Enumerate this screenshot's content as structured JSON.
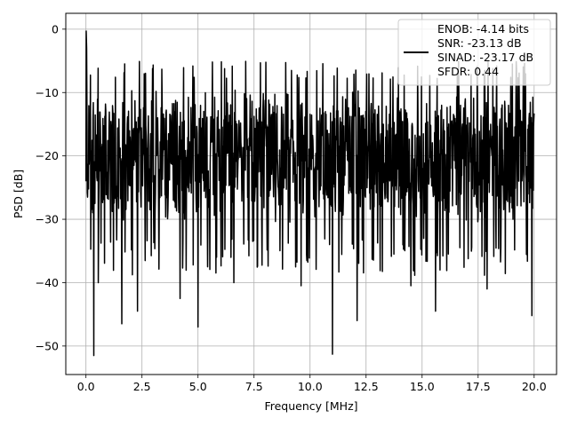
{
  "chart_data": {
    "type": "line",
    "title": "",
    "xlabel": "Frequency [MHz]",
    "ylabel": "PSD [dB]",
    "xlim": [
      -0.9,
      21.0
    ],
    "ylim": [
      -54.5,
      2.5
    ],
    "xticks": [
      0.0,
      2.5,
      5.0,
      7.5,
      10.0,
      12.5,
      15.0,
      17.5,
      20.0
    ],
    "xtick_labels": [
      "0.0",
      "2.5",
      "5.0",
      "7.5",
      "10.0",
      "12.5",
      "15.0",
      "17.5",
      "20.0"
    ],
    "yticks": [
      0,
      -10,
      -20,
      -30,
      -40,
      -50
    ],
    "ytick_labels": [
      "0",
      "−10",
      "−20",
      "−30",
      "−40",
      "−50"
    ],
    "grid": true,
    "legend_position": "top-right",
    "series": [
      {
        "color": "#000000",
        "noise_floor_db": -20,
        "noise_band_db": [
          -30,
          -8
        ],
        "deep_notches": [
          {
            "x": 0.35,
            "y": -51.5
          },
          {
            "x": 0.55,
            "y": -40
          },
          {
            "x": 1.6,
            "y": -46.5
          },
          {
            "x": 2.3,
            "y": -44.5
          },
          {
            "x": 4.2,
            "y": -42.5
          },
          {
            "x": 5.0,
            "y": -47
          },
          {
            "x": 6.6,
            "y": -40
          },
          {
            "x": 9.6,
            "y": -40.5
          },
          {
            "x": 11.0,
            "y": -51.3
          },
          {
            "x": 12.1,
            "y": -46
          },
          {
            "x": 14.5,
            "y": -40.5
          },
          {
            "x": 15.6,
            "y": -44.5
          },
          {
            "x": 17.9,
            "y": -41
          },
          {
            "x": 19.9,
            "y": -45.2
          }
        ],
        "peak_at_dc_db": -0.3
      }
    ],
    "legend": {
      "lines": [
        "ENOB: -4.14 bits",
        "SNR: -23.13 dB",
        "SINAD: -23.17 dB",
        "SFDR: 0.44"
      ]
    }
  }
}
